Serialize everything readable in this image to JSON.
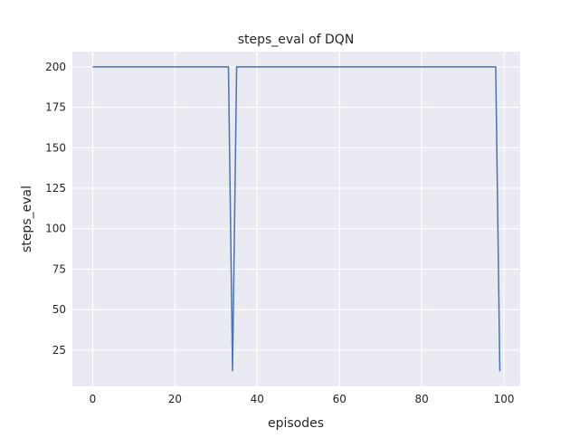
{
  "chart_data": {
    "type": "line",
    "title": "steps_eval of DQN",
    "xlabel": "episodes",
    "ylabel": "steps_eval",
    "xlim": [
      -4.95,
      103.95
    ],
    "ylim": [
      2.6,
      209.4
    ],
    "xticks": [
      0,
      20,
      40,
      60,
      80,
      100
    ],
    "yticks": [
      25,
      50,
      75,
      100,
      125,
      150,
      175,
      200
    ],
    "grid": true,
    "background": "#eaeaf2",
    "line_color": "#4c72b0",
    "x": [
      0,
      1,
      2,
      3,
      4,
      5,
      6,
      7,
      8,
      9,
      10,
      11,
      12,
      13,
      14,
      15,
      16,
      17,
      18,
      19,
      20,
      21,
      22,
      23,
      24,
      25,
      26,
      27,
      28,
      29,
      30,
      31,
      32,
      33,
      34,
      35,
      36,
      37,
      38,
      39,
      40,
      41,
      42,
      43,
      44,
      45,
      46,
      47,
      48,
      49,
      50,
      51,
      52,
      53,
      54,
      55,
      56,
      57,
      58,
      59,
      60,
      61,
      62,
      63,
      64,
      65,
      66,
      67,
      68,
      69,
      70,
      71,
      72,
      73,
      74,
      75,
      76,
      77,
      78,
      79,
      80,
      81,
      82,
      83,
      84,
      85,
      86,
      87,
      88,
      89,
      90,
      91,
      92,
      93,
      94,
      95,
      96,
      97,
      98,
      99
    ],
    "values": [
      200,
      200,
      200,
      200,
      200,
      200,
      200,
      200,
      200,
      200,
      200,
      200,
      200,
      200,
      200,
      200,
      200,
      200,
      200,
      200,
      200,
      200,
      200,
      200,
      200,
      200,
      200,
      200,
      200,
      200,
      200,
      200,
      200,
      200,
      12,
      200,
      200,
      200,
      200,
      200,
      200,
      200,
      200,
      200,
      200,
      200,
      200,
      200,
      200,
      200,
      200,
      200,
      200,
      200,
      200,
      200,
      200,
      200,
      200,
      200,
      200,
      200,
      200,
      200,
      200,
      200,
      200,
      200,
      200,
      200,
      200,
      200,
      200,
      200,
      200,
      200,
      200,
      200,
      200,
      200,
      200,
      200,
      200,
      200,
      200,
      200,
      200,
      200,
      200,
      200,
      200,
      200,
      200,
      200,
      200,
      200,
      200,
      200,
      200,
      12
    ]
  }
}
